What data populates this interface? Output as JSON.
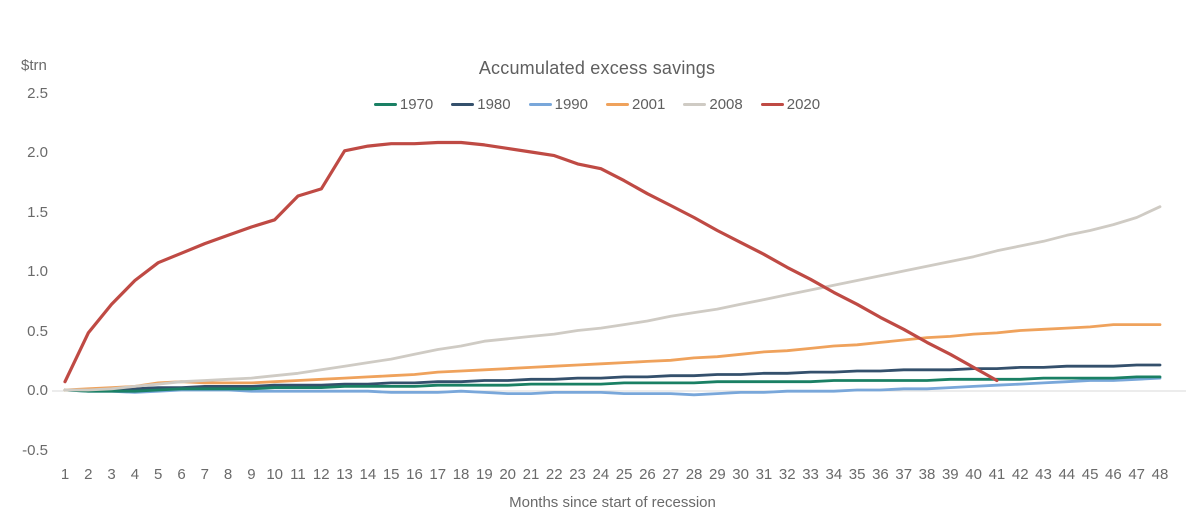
{
  "chart": {
    "title": "Accumulated excess savings",
    "y_axis_unit": "$trn",
    "x_axis_title": "Months since start of recession",
    "background_color": "#ffffff",
    "zero_line_color": "#d9d9d9",
    "text_color": "#6a6a6a"
  },
  "chart_data": {
    "type": "line",
    "title": "Accumulated excess savings",
    "xlabel": "Months since start of recession",
    "ylabel": "$trn",
    "ylim": [
      -0.5,
      2.5
    ],
    "grid": "zero-line-only",
    "legend_position": "top-center",
    "x": [
      1,
      2,
      3,
      4,
      5,
      6,
      7,
      8,
      9,
      10,
      11,
      12,
      13,
      14,
      15,
      16,
      17,
      18,
      19,
      20,
      21,
      22,
      23,
      24,
      25,
      26,
      27,
      28,
      29,
      30,
      31,
      32,
      33,
      34,
      35,
      36,
      37,
      38,
      39,
      40,
      41,
      42,
      43,
      44,
      45,
      46,
      47,
      48
    ],
    "y_ticks": [
      2.5,
      2.0,
      1.5,
      1.0,
      0.5,
      0.0,
      -0.5
    ],
    "y_tick_labels": [
      "2.5",
      "2.0",
      "1.5",
      "1.0",
      "0.5",
      "0.0",
      "-0.5"
    ],
    "series": [
      {
        "name": "1970",
        "color": "#1a8064",
        "values": [
          0.0,
          -0.01,
          -0.01,
          -0.01,
          0.0,
          0.01,
          0.01,
          0.01,
          0.01,
          0.02,
          0.02,
          0.02,
          0.03,
          0.03,
          0.03,
          0.03,
          0.04,
          0.04,
          0.04,
          0.04,
          0.05,
          0.05,
          0.05,
          0.05,
          0.06,
          0.06,
          0.06,
          0.06,
          0.07,
          0.07,
          0.07,
          0.07,
          0.07,
          0.08,
          0.08,
          0.08,
          0.08,
          0.08,
          0.09,
          0.09,
          0.09,
          0.09,
          0.1,
          0.1,
          0.1,
          0.1,
          0.11,
          0.11
        ]
      },
      {
        "name": "1980",
        "color": "#34506c",
        "values": [
          0.0,
          0.0,
          0.01,
          0.01,
          0.02,
          0.02,
          0.03,
          0.03,
          0.03,
          0.04,
          0.04,
          0.04,
          0.05,
          0.05,
          0.06,
          0.06,
          0.07,
          0.07,
          0.08,
          0.08,
          0.09,
          0.09,
          0.1,
          0.1,
          0.11,
          0.11,
          0.12,
          0.12,
          0.13,
          0.13,
          0.14,
          0.14,
          0.15,
          0.15,
          0.16,
          0.16,
          0.17,
          0.17,
          0.17,
          0.18,
          0.18,
          0.19,
          0.19,
          0.2,
          0.2,
          0.2,
          0.21,
          0.21
        ]
      },
      {
        "name": "1990",
        "color": "#79a7da",
        "values": [
          0.0,
          -0.01,
          -0.01,
          -0.02,
          -0.01,
          0.0,
          0.0,
          0.0,
          -0.01,
          -0.01,
          -0.01,
          -0.01,
          -0.01,
          -0.01,
          -0.02,
          -0.02,
          -0.02,
          -0.01,
          -0.02,
          -0.03,
          -0.03,
          -0.02,
          -0.02,
          -0.02,
          -0.03,
          -0.03,
          -0.03,
          -0.04,
          -0.03,
          -0.02,
          -0.02,
          -0.01,
          -0.01,
          -0.01,
          0.0,
          0.0,
          0.01,
          0.01,
          0.02,
          0.03,
          0.04,
          0.05,
          0.06,
          0.07,
          0.08,
          0.08,
          0.09,
          0.1
        ]
      },
      {
        "name": "2001",
        "color": "#efa25c",
        "values": [
          0.0,
          0.01,
          0.02,
          0.03,
          0.06,
          0.07,
          0.06,
          0.06,
          0.06,
          0.07,
          0.08,
          0.09,
          0.1,
          0.11,
          0.12,
          0.13,
          0.15,
          0.16,
          0.17,
          0.18,
          0.19,
          0.2,
          0.21,
          0.22,
          0.23,
          0.24,
          0.25,
          0.27,
          0.28,
          0.3,
          0.32,
          0.33,
          0.35,
          0.37,
          0.38,
          0.4,
          0.42,
          0.44,
          0.45,
          0.47,
          0.48,
          0.5,
          0.51,
          0.52,
          0.53,
          0.55,
          0.55,
          0.55
        ]
      },
      {
        "name": "2008",
        "color": "#cfcbc4",
        "values": [
          0.0,
          0.0,
          0.01,
          0.03,
          0.05,
          0.07,
          0.08,
          0.09,
          0.1,
          0.12,
          0.14,
          0.17,
          0.2,
          0.23,
          0.26,
          0.3,
          0.34,
          0.37,
          0.41,
          0.43,
          0.45,
          0.47,
          0.5,
          0.52,
          0.55,
          0.58,
          0.62,
          0.65,
          0.68,
          0.72,
          0.76,
          0.8,
          0.84,
          0.88,
          0.92,
          0.96,
          1.0,
          1.04,
          1.08,
          1.12,
          1.17,
          1.21,
          1.25,
          1.3,
          1.34,
          1.39,
          1.45,
          1.54
        ]
      },
      {
        "name": "2020",
        "color": "#bf4a44",
        "values": [
          0.07,
          0.48,
          0.72,
          0.92,
          1.07,
          1.15,
          1.23,
          1.3,
          1.37,
          1.43,
          1.63,
          1.69,
          2.01,
          2.05,
          2.07,
          2.07,
          2.08,
          2.08,
          2.06,
          2.03,
          2.0,
          1.97,
          1.9,
          1.86,
          1.76,
          1.65,
          1.55,
          1.45,
          1.34,
          1.24,
          1.14,
          1.03,
          0.93,
          0.82,
          0.72,
          0.61,
          0.51,
          0.4,
          0.3,
          0.19,
          0.08
        ]
      }
    ]
  }
}
